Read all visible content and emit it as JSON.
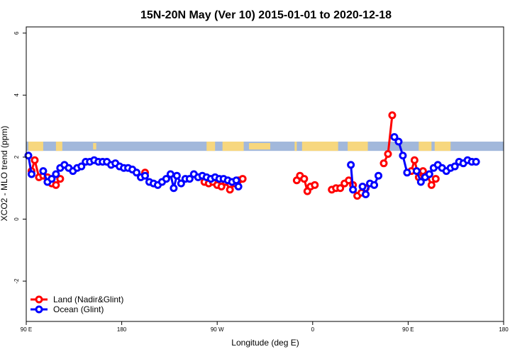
{
  "chart_data": {
    "type": "line",
    "title": "15N-20N May (Ver 10)   2015-01-01 to 2020-12-18",
    "xlabel": "Longitude (deg E)",
    "ylabel": "XCO2 - MLO trend (ppm)",
    "xlim": [
      90,
      450
    ],
    "ylim": [
      -3.3,
      6.2
    ],
    "x_ticks": [
      90,
      180,
      270,
      360,
      450
    ],
    "x_tick_labels": [
      "90 E",
      "180",
      "90 W",
      "0",
      "90 E",
      "180"
    ],
    "x_tick_positions": [
      90,
      180,
      270,
      360,
      450,
      540
    ],
    "y_ticks": [
      -2,
      0,
      2,
      4,
      6
    ],
    "y_tick_labels": [
      "-2",
      "0",
      "2",
      "4",
      "6"
    ],
    "legend_position": "bottom-left",
    "map_strip": {
      "y_range": [
        2.2,
        2.5
      ],
      "ocean_color": "#a2b8db",
      "land_color": "#f7d77e"
    },
    "series": [
      {
        "name": "Land (Nadir&Glint)",
        "color": "#ff0000",
        "points": [
          [
            95,
            1.55
          ],
          [
            98,
            1.9
          ],
          [
            102,
            1.35
          ],
          [
            106,
            1.4
          ],
          [
            110,
            1.35
          ],
          [
            114,
            1.15
          ],
          [
            118,
            1.1
          ],
          [
            122,
            1.3
          ],
          null,
          [
            202,
            1.5
          ],
          null,
          [
            258,
            1.2
          ],
          [
            262,
            1.15
          ],
          [
            266,
            1.2
          ],
          [
            270,
            1.1
          ],
          [
            274,
            1.05
          ],
          [
            278,
            1.2
          ],
          [
            282,
            0.95
          ],
          [
            286,
            1.15
          ],
          [
            290,
            1.25
          ],
          [
            294,
            1.3
          ],
          null,
          [
            345,
            1.25
          ],
          [
            348,
            1.4
          ],
          [
            352,
            1.3
          ],
          [
            355,
            0.9
          ],
          [
            358,
            1.05
          ],
          [
            362,
            1.1
          ],
          null,
          [
            378,
            0.95
          ],
          [
            382,
            1.0
          ],
          [
            386,
            1.0
          ],
          [
            390,
            1.15
          ],
          [
            394,
            1.25
          ],
          [
            398,
            1.1
          ],
          [
            402,
            0.75
          ],
          [
            406,
            0.85
          ],
          [
            410,
            1.0
          ],
          null,
          [
            427,
            1.8
          ],
          [
            431,
            2.1
          ],
          [
            435,
            3.35
          ],
          null,
          [
            453,
            1.55
          ],
          [
            456,
            1.9
          ],
          [
            460,
            1.35
          ],
          [
            464,
            1.55
          ],
          [
            468,
            1.4
          ],
          [
            472,
            1.1
          ],
          [
            476,
            1.3
          ]
        ]
      },
      {
        "name": "Ocean (Glint)",
        "color": "#0000ff",
        "points": [
          [
            92,
            2.05
          ],
          [
            95,
            1.45
          ],
          null,
          [
            106,
            1.55
          ],
          [
            110,
            1.2
          ],
          [
            114,
            1.3
          ],
          [
            118,
            1.45
          ],
          [
            122,
            1.65
          ],
          [
            126,
            1.75
          ],
          [
            130,
            1.65
          ],
          [
            134,
            1.55
          ],
          [
            138,
            1.65
          ],
          [
            142,
            1.7
          ],
          [
            146,
            1.85
          ],
          [
            150,
            1.85
          ],
          [
            154,
            1.9
          ],
          [
            158,
            1.85
          ],
          [
            162,
            1.85
          ],
          [
            166,
            1.85
          ],
          [
            170,
            1.75
          ],
          [
            174,
            1.8
          ],
          [
            178,
            1.7
          ],
          [
            182,
            1.65
          ],
          [
            186,
            1.65
          ],
          [
            190,
            1.6
          ],
          [
            194,
            1.5
          ],
          [
            198,
            1.35
          ],
          [
            202,
            1.4
          ],
          [
            206,
            1.2
          ],
          [
            210,
            1.15
          ],
          [
            214,
            1.1
          ],
          [
            218,
            1.2
          ],
          [
            222,
            1.3
          ],
          [
            226,
            1.45
          ],
          [
            229,
            1.0
          ],
          [
            232,
            1.4
          ],
          [
            236,
            1.15
          ],
          [
            240,
            1.3
          ],
          [
            244,
            1.3
          ],
          [
            248,
            1.45
          ],
          [
            252,
            1.35
          ],
          [
            256,
            1.4
          ],
          [
            260,
            1.35
          ],
          [
            264,
            1.3
          ],
          [
            268,
            1.35
          ],
          [
            272,
            1.3
          ],
          [
            276,
            1.3
          ],
          [
            280,
            1.25
          ],
          [
            284,
            1.2
          ],
          [
            288,
            1.25
          ],
          [
            290,
            1.05
          ],
          null,
          [
            396,
            1.75
          ],
          [
            398,
            0.95
          ],
          null,
          [
            407,
            1.05
          ],
          [
            410,
            0.8
          ],
          [
            414,
            1.15
          ],
          [
            418,
            1.1
          ],
          [
            422,
            1.4
          ],
          null,
          [
            437,
            2.65
          ],
          [
            441,
            2.5
          ],
          [
            445,
            2.05
          ],
          [
            449,
            1.5
          ],
          null,
          [
            458,
            1.55
          ],
          [
            462,
            1.2
          ],
          [
            466,
            1.35
          ],
          [
            470,
            1.45
          ],
          [
            474,
            1.65
          ],
          [
            478,
            1.75
          ],
          [
            482,
            1.65
          ],
          [
            486,
            1.55
          ],
          [
            490,
            1.65
          ],
          [
            494,
            1.7
          ],
          [
            498,
            1.85
          ],
          [
            502,
            1.8
          ],
          [
            506,
            1.9
          ],
          [
            510,
            1.85
          ],
          [
            514,
            1.85
          ]
        ]
      }
    ]
  }
}
